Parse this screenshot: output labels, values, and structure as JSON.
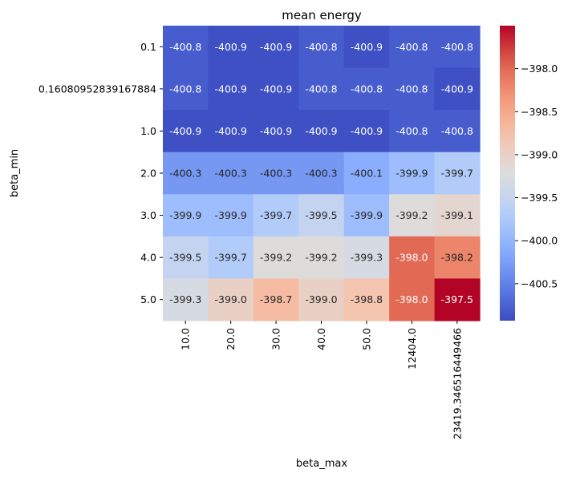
{
  "chart_data": {
    "type": "heatmap",
    "title": "mean energy",
    "xlabel": "beta_max",
    "ylabel": "beta_min",
    "x_categories": [
      "10.0",
      "20.0",
      "30.0",
      "40.0",
      "50.0",
      "12404.0",
      "23419.346516449466"
    ],
    "y_categories": [
      "0.1",
      "0.16080952839167884",
      "1.0",
      "2.0",
      "3.0",
      "4.0",
      "5.0"
    ],
    "values": [
      [
        -400.8,
        -400.9,
        -400.9,
        -400.8,
        -400.9,
        -400.8,
        -400.8
      ],
      [
        -400.8,
        -400.9,
        -400.9,
        -400.8,
        -400.8,
        -400.8,
        -400.9
      ],
      [
        -400.9,
        -400.9,
        -400.9,
        -400.9,
        -400.9,
        -400.8,
        -400.8
      ],
      [
        -400.3,
        -400.3,
        -400.3,
        -400.3,
        -400.1,
        -399.9,
        -399.7
      ],
      [
        -399.9,
        -399.9,
        -399.7,
        -399.5,
        -399.9,
        -399.2,
        -399.1
      ],
      [
        -399.5,
        -399.7,
        -399.2,
        -399.2,
        -399.3,
        -398.0,
        -398.2
      ],
      [
        -399.3,
        -399.0,
        -398.7,
        -399.0,
        -398.8,
        -398.0,
        -397.5
      ]
    ],
    "cell_labels": [
      [
        "-400.8",
        "-400.9",
        "-400.9",
        "-400.8",
        "-400.9",
        "-400.8",
        "-400.8"
      ],
      [
        "-400.8",
        "-400.9",
        "-400.9",
        "-400.8",
        "-400.8",
        "-400.8",
        "-400.9"
      ],
      [
        "-400.9",
        "-400.9",
        "-400.9",
        "-400.9",
        "-400.9",
        "-400.8",
        "-400.8"
      ],
      [
        "-400.3",
        "-400.3",
        "-400.3",
        "-400.3",
        "-400.1",
        "-399.9",
        "-399.7"
      ],
      [
        "-399.9",
        "-399.9",
        "-399.7",
        "-399.5",
        "-399.9",
        "-399.2",
        "-399.1"
      ],
      [
        "-399.5",
        "-399.7",
        "-399.2",
        "-399.2",
        "-399.3",
        "-398.0",
        "-398.2"
      ],
      [
        "-399.3",
        "-399.0",
        "-398.7",
        "-399.0",
        "-398.8",
        "-398.0",
        "-397.5"
      ]
    ],
    "colormap": "coolwarm",
    "colorbar_range": [
      -400.93,
      -397.5
    ],
    "colorbar_ticks": [
      -398.0,
      -398.5,
      -399.0,
      -399.5,
      -400.0,
      -400.5
    ],
    "colorbar_tick_labels": [
      "−398.0",
      "−398.5",
      "−399.0",
      "−399.5",
      "−400.0",
      "−400.5"
    ],
    "colors": {
      "low": "#3b4cc0",
      "mid": "#dddddd",
      "high": "#b40426"
    }
  }
}
